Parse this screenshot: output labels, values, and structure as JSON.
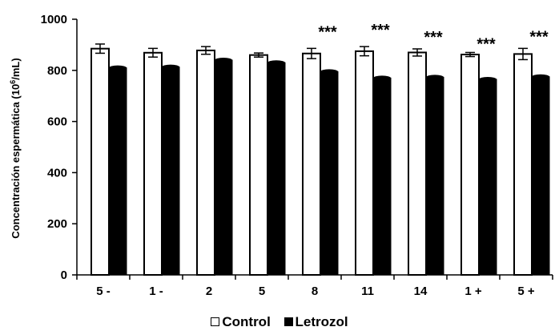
{
  "chart_data": {
    "type": "bar",
    "categories": [
      "5 -",
      "1 -",
      "2",
      "5",
      "8",
      "11",
      "14",
      "1 +",
      "5 +"
    ],
    "series": [
      {
        "name": "Control",
        "values": [
          885,
          869,
          878,
          860,
          866,
          875,
          870,
          862,
          864
        ],
        "errors": [
          18,
          17,
          15,
          8,
          20,
          18,
          14,
          8,
          22
        ],
        "color": "#ffffff"
      },
      {
        "name": "Letrozol",
        "values": [
          810,
          813,
          840,
          830,
          795,
          770,
          773,
          765,
          775
        ],
        "color": "#000000"
      }
    ],
    "significance": [
      "",
      "",
      "",
      "",
      "***",
      "***",
      "***",
      "***",
      "***"
    ],
    "ylabel_main": "Concentración espermática (10",
    "ylabel_sup": "6",
    "ylabel_tail": "/mL)",
    "yticks": [
      0,
      200,
      400,
      600,
      800,
      1000
    ],
    "ylim": [
      0,
      1000
    ],
    "legend_position": "bottom",
    "grid": false
  }
}
